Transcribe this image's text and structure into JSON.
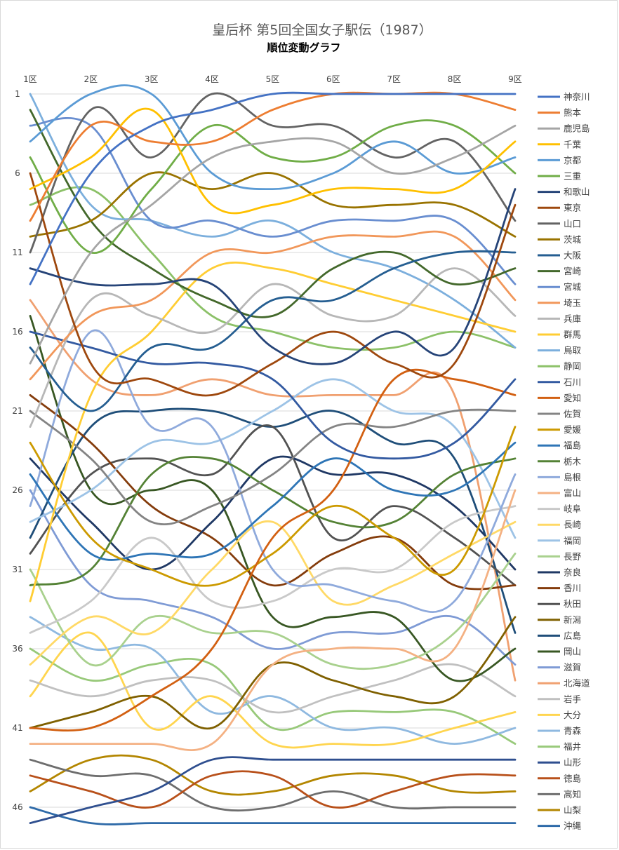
{
  "chart_data": {
    "type": "line",
    "title": "皇后杯 第5回全国女子駅伝（1987）",
    "subtitle": "順位変動グラフ",
    "x_categories": [
      "1区",
      "2区",
      "3区",
      "4区",
      "5区",
      "6区",
      "7区",
      "8区",
      "9区"
    ],
    "y_tick_labels": [
      "1",
      "6",
      "11",
      "16",
      "21",
      "26",
      "31",
      "36",
      "41",
      "46"
    ],
    "y_ticks": [
      1,
      6,
      11,
      16,
      21,
      26,
      31,
      36,
      41,
      46
    ],
    "ylim": [
      1,
      47
    ],
    "y_reversed": true,
    "grid": "horizontal",
    "legend_position": "right",
    "series": [
      {
        "name": "神奈川",
        "color": "#4472c4",
        "values": [
          13,
          6,
          3,
          2,
          1,
          1,
          1,
          1,
          1
        ]
      },
      {
        "name": "熊本",
        "color": "#ed7d31",
        "values": [
          9,
          3,
          4,
          4,
          2,
          1,
          1,
          1,
          2
        ]
      },
      {
        "name": "鹿児島",
        "color": "#a5a5a5",
        "values": [
          18,
          11,
          8,
          5,
          4,
          4,
          6,
          5,
          3
        ]
      },
      {
        "name": "千葉",
        "color": "#ffc000",
        "values": [
          7,
          5,
          2,
          8,
          8,
          7,
          7,
          7,
          4
        ]
      },
      {
        "name": "京都",
        "color": "#5b9bd5",
        "values": [
          4,
          1,
          1,
          6,
          7,
          6,
          4,
          6,
          5
        ]
      },
      {
        "name": "三重",
        "color": "#70ad47",
        "values": [
          5,
          11,
          7,
          3,
          5,
          5,
          3,
          3,
          6
        ]
      },
      {
        "name": "和歌山",
        "color": "#264478",
        "values": [
          12,
          13,
          13,
          13,
          17,
          18,
          16,
          17,
          7
        ]
      },
      {
        "name": "東京",
        "color": "#9e480e",
        "values": [
          6,
          18,
          19,
          20,
          18,
          16,
          18,
          18,
          8
        ]
      },
      {
        "name": "山口",
        "color": "#636363",
        "values": [
          11,
          2,
          5,
          1,
          3,
          3,
          5,
          4,
          9
        ]
      },
      {
        "name": "茨城",
        "color": "#997300",
        "values": [
          10,
          9,
          6,
          7,
          6,
          8,
          8,
          8,
          10
        ]
      },
      {
        "name": "大阪",
        "color": "#255e91",
        "values": [
          17,
          21,
          17,
          17,
          14,
          14,
          12,
          11,
          11
        ]
      },
      {
        "name": "宮崎",
        "color": "#43682b",
        "values": [
          2,
          9,
          12,
          14,
          15,
          12,
          11,
          13,
          12
        ]
      },
      {
        "name": "宮城",
        "color": "#698ed0",
        "values": [
          3,
          3,
          9,
          9,
          10,
          9,
          9,
          9,
          13
        ]
      },
      {
        "name": "埼玉",
        "color": "#f1975a",
        "values": [
          19,
          15,
          14,
          11,
          11,
          10,
          10,
          10,
          14
        ]
      },
      {
        "name": "兵庫",
        "color": "#b7b7b7",
        "values": [
          22,
          14,
          15,
          16,
          13,
          15,
          15,
          12,
          15
        ]
      },
      {
        "name": "群馬",
        "color": "#ffcd33",
        "values": [
          33,
          20,
          16,
          12,
          12,
          13,
          14,
          15,
          16
        ]
      },
      {
        "name": "鳥取",
        "color": "#7cafdd",
        "values": [
          1,
          8,
          9,
          10,
          9,
          11,
          12,
          14,
          17
        ]
      },
      {
        "name": "静岡",
        "color": "#8cc168",
        "values": [
          8,
          7,
          11,
          15,
          16,
          17,
          17,
          16,
          17
        ]
      },
      {
        "name": "石川",
        "color": "#335aa1",
        "values": [
          16,
          17,
          18,
          18,
          19,
          23,
          24,
          23,
          19
        ]
      },
      {
        "name": "愛知",
        "color": "#d26012",
        "values": [
          41,
          41,
          39,
          36,
          29,
          26,
          19,
          19,
          20
        ]
      },
      {
        "name": "佐賀",
        "color": "#848484",
        "values": [
          21,
          24,
          28,
          27,
          25,
          22,
          22,
          21,
          21
        ]
      },
      {
        "name": "愛媛",
        "color": "#cc9a00",
        "values": [
          23,
          29,
          31,
          32,
          30,
          27,
          29,
          31,
          22
        ]
      },
      {
        "name": "福島",
        "color": "#2e75b6",
        "values": [
          25,
          30,
          30,
          30,
          27,
          24,
          26,
          26,
          23
        ]
      },
      {
        "name": "栃木",
        "color": "#548235",
        "values": [
          32,
          31,
          25,
          24,
          26,
          28,
          28,
          25,
          24
        ]
      },
      {
        "name": "島根",
        "color": "#8faadc",
        "values": [
          27,
          16,
          22,
          22,
          31,
          32,
          33,
          33,
          25
        ]
      },
      {
        "name": "富山",
        "color": "#f4b183",
        "values": [
          42,
          42,
          42,
          42,
          37,
          36,
          36,
          36,
          26
        ]
      },
      {
        "name": "岐阜",
        "color": "#c9c9c9",
        "values": [
          35,
          33,
          29,
          33,
          33,
          31,
          31,
          28,
          27
        ]
      },
      {
        "name": "長崎",
        "color": "#ffd966",
        "values": [
          37,
          34,
          35,
          31,
          28,
          33,
          32,
          30,
          28
        ]
      },
      {
        "name": "福岡",
        "color": "#9dc3e6",
        "values": [
          28,
          26,
          23,
          23,
          21,
          19,
          21,
          22,
          29
        ]
      },
      {
        "name": "長野",
        "color": "#a9d18e",
        "values": [
          31,
          37,
          34,
          35,
          35,
          37,
          37,
          35,
          30
        ]
      },
      {
        "name": "奈良",
        "color": "#1f3864",
        "values": [
          24,
          28,
          31,
          28,
          24,
          25,
          25,
          27,
          31
        ]
      },
      {
        "name": "香川",
        "color": "#843c0c",
        "values": [
          20,
          23,
          27,
          29,
          32,
          30,
          29,
          32,
          32
        ]
      },
      {
        "name": "秋田",
        "color": "#525252",
        "values": [
          30,
          25,
          24,
          25,
          22,
          29,
          27,
          29,
          32
        ]
      },
      {
        "name": "新潟",
        "color": "#7f6000",
        "values": [
          41,
          40,
          39,
          41,
          37,
          38,
          39,
          39,
          34
        ]
      },
      {
        "name": "広島",
        "color": "#1f4e79",
        "values": [
          29,
          22,
          21,
          21,
          22,
          21,
          23,
          24,
          35
        ]
      },
      {
        "name": "岡山",
        "color": "#385723",
        "values": [
          15,
          26,
          26,
          26,
          34,
          34,
          34,
          38,
          36
        ]
      },
      {
        "name": "滋賀",
        "color": "#7f9bd5",
        "values": [
          26,
          32,
          33,
          34,
          36,
          35,
          35,
          34,
          37
        ]
      },
      {
        "name": "北海道",
        "color": "#f0a070",
        "values": [
          14,
          19,
          20,
          19,
          20,
          20,
          20,
          20,
          38
        ]
      },
      {
        "name": "岩手",
        "color": "#c0c0c0",
        "values": [
          38,
          39,
          38,
          38,
          40,
          39,
          38,
          37,
          39
        ]
      },
      {
        "name": "大分",
        "color": "#ffd54f",
        "values": [
          39,
          35,
          41,
          39,
          42,
          42,
          42,
          41,
          40
        ]
      },
      {
        "name": "青森",
        "color": "#8fb9e0",
        "values": [
          34,
          36,
          36,
          40,
          39,
          41,
          41,
          42,
          41
        ]
      },
      {
        "name": "福井",
        "color": "#98c97a",
        "values": [
          36,
          38,
          37,
          37,
          41,
          40,
          40,
          40,
          42
        ]
      },
      {
        "name": "山形",
        "color": "#2f4f8f",
        "values": [
          47,
          46,
          45,
          43,
          43,
          43,
          43,
          43,
          43
        ]
      },
      {
        "name": "徳島",
        "color": "#b8501a",
        "values": [
          44,
          45,
          46,
          44,
          44,
          46,
          45,
          44,
          44
        ]
      },
      {
        "name": "高知",
        "color": "#6e6e6e",
        "values": [
          43,
          44,
          44,
          46,
          46,
          45,
          46,
          46,
          46
        ]
      },
      {
        "name": "山梨",
        "color": "#b38600",
        "values": [
          45,
          43,
          43,
          45,
          45,
          44,
          44,
          45,
          45
        ]
      },
      {
        "name": "沖縄",
        "color": "#2e6aa8",
        "values": [
          46,
          47,
          47,
          47,
          47,
          47,
          47,
          47,
          47
        ]
      }
    ]
  }
}
